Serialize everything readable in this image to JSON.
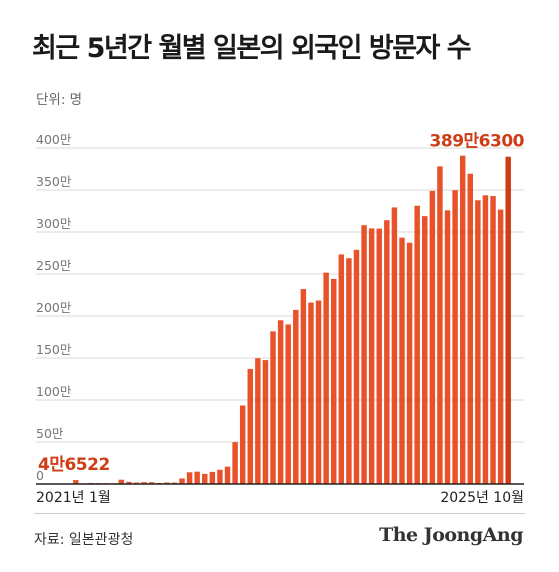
{
  "title": "최근 5년간 월별 일본의 외국인 방문자 수",
  "unit_label": "단위: 명",
  "source": "자료: 일본관광청",
  "brand": "The JoongAng",
  "colors": {
    "bar": "#e8522a",
    "highlight": "#cf3d17",
    "grid": "#d9d9d9",
    "axis": "#222222",
    "tick": "#777777"
  },
  "chart_data": {
    "type": "bar",
    "title": "최근 5년간 월별 일본의 외국인 방문자 수",
    "ylabel": "단위: 명",
    "ylim": [
      0,
      4000000
    ],
    "y_ticks": [
      0,
      500000,
      1000000,
      1500000,
      2000000,
      2500000,
      3000000,
      3500000,
      4000000
    ],
    "y_tick_labels": [
      "0",
      "50만",
      "100만",
      "150만",
      "200만",
      "250만",
      "300만",
      "350만",
      "400만"
    ],
    "x_start_label": "2021년 1월",
    "x_end_label": "2025년 10월",
    "categories": [
      "2021-01",
      "2021-02",
      "2021-03",
      "2021-04",
      "2021-05",
      "2021-06",
      "2021-07",
      "2021-08",
      "2021-09",
      "2021-10",
      "2021-11",
      "2021-12",
      "2022-01",
      "2022-02",
      "2022-03",
      "2022-04",
      "2022-05",
      "2022-06",
      "2022-07",
      "2022-08",
      "2022-09",
      "2022-10",
      "2022-11",
      "2022-12",
      "2023-01",
      "2023-02",
      "2023-03",
      "2023-04",
      "2023-05",
      "2023-06",
      "2023-07",
      "2023-08",
      "2023-09",
      "2023-10",
      "2023-11",
      "2023-12",
      "2024-01",
      "2024-02",
      "2024-03",
      "2024-04",
      "2024-05",
      "2024-06",
      "2024-07",
      "2024-08",
      "2024-09",
      "2024-10",
      "2024-11",
      "2024-12",
      "2025-01",
      "2025-02",
      "2025-03",
      "2025-04",
      "2025-05",
      "2025-06",
      "2025-07",
      "2025-08",
      "2025-09",
      "2025-10"
    ],
    "values": [
      46522,
      7400,
      12300,
      10900,
      10000,
      9300,
      51100,
      25900,
      17700,
      22100,
      21000,
      12000,
      17800,
      16700,
      66100,
      139500,
      147000,
      120400,
      144500,
      169900,
      206700,
      498600,
      934500,
      1370100,
      1497300,
      1475300,
      1817600,
      1949100,
      1898900,
      2073300,
      2320600,
      2159600,
      2184300,
      2516500,
      2441300,
      2733000,
      2688100,
      2788000,
      3081600,
      3042900,
      3040100,
      3140600,
      3292500,
      2932800,
      2872200,
      3312000,
      3188800,
      3489800,
      3781600,
      3258100,
      3497600,
      3908900,
      3693300,
      3377800,
      3437000,
      3428000,
      3266800,
      3896300
    ],
    "annotations": [
      {
        "index": 0,
        "text": "4만6522"
      },
      {
        "index": 57,
        "text": "389만6300"
      }
    ]
  }
}
